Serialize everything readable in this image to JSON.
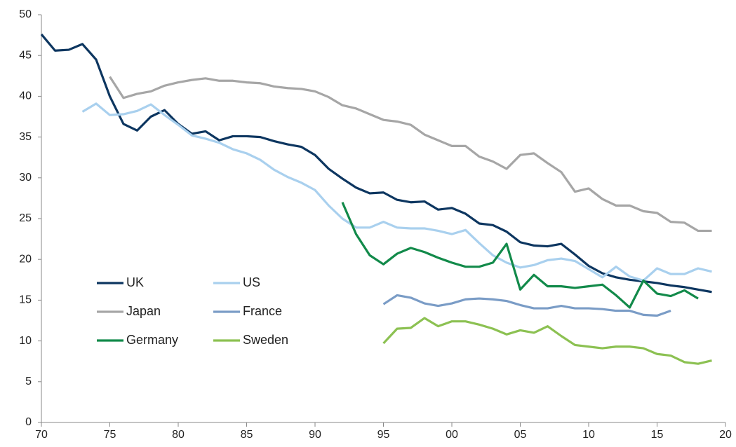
{
  "chart_data": {
    "type": "line",
    "x": [
      1970,
      1971,
      1972,
      1973,
      1974,
      1975,
      1976,
      1977,
      1978,
      1979,
      1980,
      1981,
      1982,
      1983,
      1984,
      1985,
      1986,
      1987,
      1988,
      1989,
      1990,
      1991,
      1992,
      1993,
      1994,
      1995,
      1996,
      1997,
      1998,
      1999,
      2000,
      2001,
      2002,
      2003,
      2004,
      2005,
      2006,
      2007,
      2008,
      2009,
      2010,
      2011,
      2012,
      2013,
      2014,
      2015,
      2016,
      2017,
      2018,
      2019
    ],
    "xlim": [
      1970,
      2020
    ],
    "xticks": [
      {
        "value": 1970,
        "label": "70"
      },
      {
        "value": 1975,
        "label": "75"
      },
      {
        "value": 1980,
        "label": "80"
      },
      {
        "value": 1985,
        "label": "85"
      },
      {
        "value": 1990,
        "label": "90"
      },
      {
        "value": 1995,
        "label": "95"
      },
      {
        "value": 2000,
        "label": "00"
      },
      {
        "value": 2005,
        "label": "05"
      },
      {
        "value": 2010,
        "label": "10"
      },
      {
        "value": 2015,
        "label": "15"
      },
      {
        "value": 2020,
        "label": "20"
      }
    ],
    "ylim": [
      0,
      50
    ],
    "yticks": [
      0,
      5,
      10,
      15,
      20,
      25,
      30,
      35,
      40,
      45,
      50
    ],
    "grid": false,
    "legend": "lower left",
    "series": [
      {
        "name": "UK",
        "color": "#0d3660",
        "values": [
          47.6,
          45.6,
          45.7,
          46.4,
          44.5,
          40,
          36.6,
          35.8,
          37.5,
          38.3,
          36.6,
          35.4,
          35.7,
          34.6,
          35.1,
          35.1,
          35,
          34.5,
          34.1,
          33.8,
          32.8,
          31.1,
          29.9,
          28.8,
          28.1,
          28.2,
          27.3,
          27,
          27.1,
          26.1,
          26.3,
          25.6,
          24.4,
          24.2,
          23.4,
          22.1,
          21.7,
          21.6,
          21.9,
          20.6,
          19.2,
          18.3,
          17.8,
          17.5,
          17.3,
          17.1,
          16.8,
          16.6,
          16.3,
          16.0
        ]
      },
      {
        "name": "US",
        "color": "#a9d0ee",
        "values": [
          null,
          null,
          null,
          38.1,
          39.1,
          37.7,
          37.8,
          38.2,
          39,
          37.7,
          36.5,
          35.2,
          34.8,
          34.3,
          33.5,
          33,
          32.2,
          31,
          30.1,
          29.4,
          28.5,
          26.6,
          25,
          23.9,
          23.9,
          24.6,
          23.9,
          23.8,
          23.8,
          23.5,
          23.1,
          23.6,
          22,
          20.5,
          19.6,
          19,
          19.3,
          19.9,
          20.1,
          19.8,
          18.8,
          17.8,
          19.1,
          17.9,
          17.4,
          18.9,
          18.2,
          18.2,
          18.9,
          18.5
        ]
      },
      {
        "name": "Japan",
        "color": "#a6a6a6",
        "values": [
          null,
          null,
          null,
          null,
          null,
          42.4,
          39.8,
          40.3,
          40.6,
          41.3,
          41.7,
          42,
          42.2,
          41.9,
          41.9,
          41.7,
          41.6,
          41.2,
          41,
          40.9,
          40.6,
          39.9,
          38.9,
          38.5,
          37.8,
          37.1,
          36.9,
          36.5,
          35.3,
          34.6,
          33.9,
          33.9,
          32.6,
          32,
          31.1,
          32.8,
          33,
          31.8,
          30.7,
          28.3,
          28.7,
          27.4,
          26.6,
          26.6,
          25.9,
          25.7,
          24.6,
          24.5,
          23.5,
          23.5
        ]
      },
      {
        "name": "France",
        "color": "#7a9cc6",
        "values": [
          null,
          null,
          null,
          null,
          null,
          null,
          null,
          null,
          null,
          null,
          null,
          null,
          null,
          null,
          null,
          null,
          null,
          null,
          null,
          null,
          null,
          null,
          null,
          null,
          null,
          14.5,
          15.6,
          15.3,
          14.6,
          14.3,
          14.6,
          15.1,
          15.2,
          15.1,
          14.9,
          14.4,
          14,
          14,
          14.3,
          14,
          14,
          13.9,
          13.7,
          13.7,
          13.2,
          13.1,
          13.7,
          null,
          null,
          null
        ]
      },
      {
        "name": "Germany",
        "color": "#128a4a",
        "values": [
          null,
          null,
          null,
          null,
          null,
          null,
          null,
          null,
          null,
          null,
          null,
          null,
          null,
          null,
          null,
          null,
          null,
          null,
          null,
          null,
          null,
          null,
          27,
          23.1,
          20.5,
          19.4,
          20.7,
          21.4,
          20.9,
          20.2,
          19.6,
          19.1,
          19.1,
          19.6,
          21.9,
          16.3,
          18.1,
          16.7,
          16.7,
          16.5,
          16.7,
          16.9,
          15.6,
          14.1,
          17.4,
          15.8,
          15.5,
          16.2,
          15.2,
          null
        ]
      },
      {
        "name": "Sweden",
        "color": "#8cc152",
        "values": [
          null,
          null,
          null,
          null,
          null,
          null,
          null,
          null,
          null,
          null,
          null,
          null,
          null,
          null,
          null,
          null,
          null,
          null,
          null,
          null,
          null,
          null,
          null,
          null,
          null,
          9.7,
          11.5,
          11.6,
          12.8,
          11.8,
          12.4,
          12.4,
          12,
          11.5,
          10.8,
          11.3,
          11,
          11.8,
          10.6,
          9.5,
          9.3,
          9.1,
          9.3,
          9.3,
          9.1,
          8.4,
          8.2,
          7.4,
          7.2,
          7.6
        ]
      }
    ]
  }
}
